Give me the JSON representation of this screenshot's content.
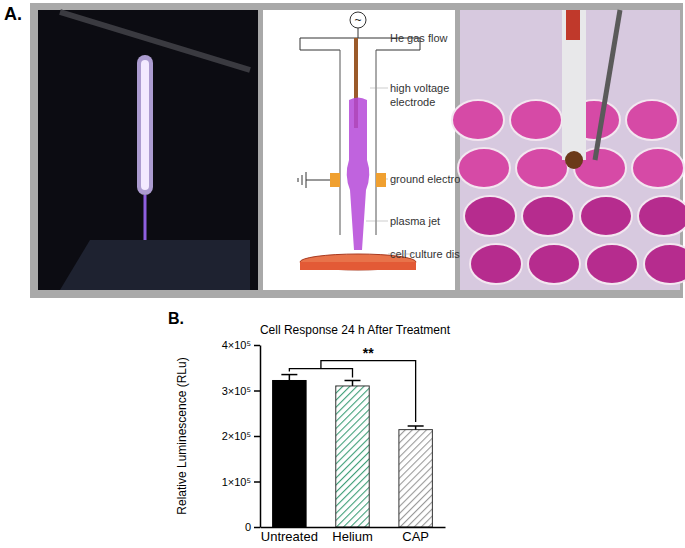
{
  "panel_labels": [
    "A.",
    "B."
  ],
  "diagram": {
    "symbol": "~",
    "labels": [
      [
        "He gas flow"
      ],
      [
        "high voltage",
        "electrode"
      ],
      [
        "ground electrode"
      ],
      [
        "plasma jet"
      ],
      [
        "cell culture dish"
      ]
    ]
  },
  "chart_data": {
    "type": "bar",
    "title": "Cell Response 24 h After Treatment",
    "ylabel": "Relative Luminescence (RLu)",
    "categories": [
      "Untreated",
      "Helium",
      "CAP"
    ],
    "values": [
      322000,
      310000,
      214000
    ],
    "errors": [
      13000,
      12000,
      8000
    ],
    "colors": [
      "#000000",
      "#3f9f78",
      "#9a9a9a"
    ],
    "ylim": [
      0,
      400000
    ],
    "yticks": [
      0,
      {
        "value": 100000,
        "label": "1×10⁵"
      },
      {
        "value": 200000,
        "label": "2×10⁵"
      },
      {
        "value": 300000,
        "label": "3×10⁵"
      },
      {
        "value": 400000,
        "label": "4×10⁵"
      }
    ],
    "annotations": [
      "**"
    ],
    "grid": false
  }
}
